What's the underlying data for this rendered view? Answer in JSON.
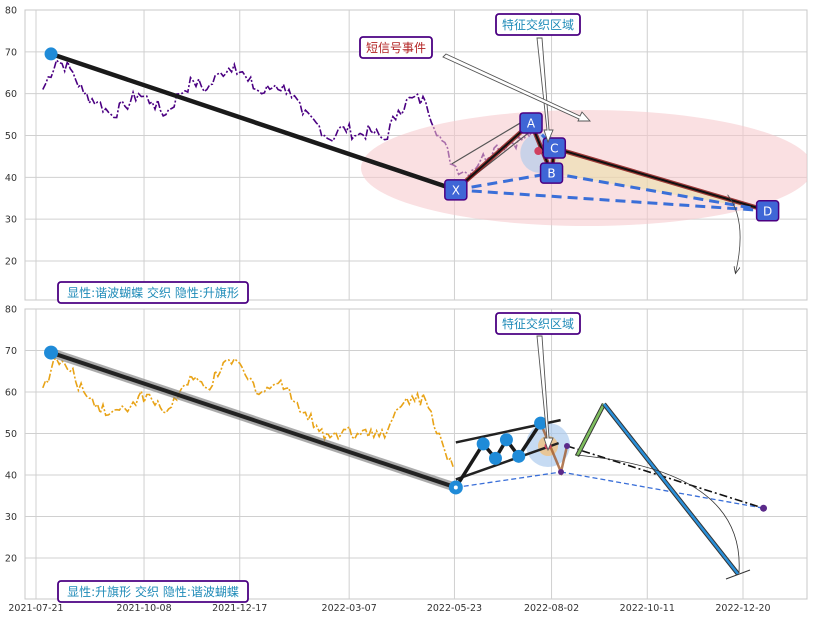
{
  "chart_data": [
    {
      "type": "line",
      "panel": "top",
      "ylim": [
        10,
        80
      ],
      "yticks": [
        "20",
        "30",
        "40",
        "50",
        "60",
        "70",
        "80"
      ],
      "grid": true,
      "colors": {
        "price": "#4b0082",
        "xa_leg": "#1a1a1a",
        "dashed": "#3a6fd8",
        "ellipse": "#f5c6cb",
        "label_fill": "#3f66d6",
        "callout_text": "#1f8bb8",
        "callout_text_alt": "#b22222",
        "callout_border": "#4b0082"
      },
      "series": [
        {
          "line_style": "dash-dot",
          "x": [
            "2021-07-26",
            "2021-08-05",
            "2021-08-15",
            "2021-08-25",
            "2021-09-04",
            "2021-09-14",
            "2021-09-24",
            "2021-10-04",
            "2021-10-14",
            "2021-10-24",
            "2021-11-03",
            "2021-11-13",
            "2021-11-23",
            "2021-12-03",
            "2021-12-13",
            "2021-12-23",
            "2022-01-02",
            "2022-01-12",
            "2022-01-22",
            "2022-02-01",
            "2022-02-11",
            "2022-02-21",
            "2022-03-03",
            "2022-03-13",
            "2022-03-23",
            "2022-04-02",
            "2022-04-12",
            "2022-04-22",
            "2022-05-02",
            "2022-05-12",
            "2022-05-22",
            "2022-06-01",
            "2022-06-11",
            "2022-06-21",
            "2022-07-01",
            "2022-07-11",
            "2022-07-21"
          ],
          "values": [
            61,
            68,
            66,
            60,
            58,
            55,
            57,
            60,
            58,
            55,
            60,
            63,
            61,
            65,
            67,
            63,
            60,
            62,
            61,
            55,
            53,
            49,
            52,
            50,
            51,
            49,
            56,
            59,
            58,
            50,
            43,
            41,
            44,
            47,
            48,
            49,
            51
          ]
        }
      ],
      "pattern_points": [
        {
          "label": "X",
          "date": "2022-05-24",
          "value": 37
        },
        {
          "label": "A",
          "date": "2022-07-18",
          "value": 53
        },
        {
          "label": "B",
          "date": "2022-08-02",
          "value": 41
        },
        {
          "label": "C",
          "date": "2022-08-04",
          "value": 47
        },
        {
          "label": "D",
          "date": "2023-01-07",
          "value": 32
        }
      ],
      "start_marker": {
        "date": "2021-08-01",
        "value": 69.5
      },
      "callouts": {
        "feature_zone": "特征交织区域",
        "short_signal": "短信号事件",
        "legend": "显性:谐波蝴蝶 交织 隐性:升旗形"
      }
    },
    {
      "type": "line",
      "panel": "bottom",
      "ylim": [
        10,
        80
      ],
      "yticks": [
        "20",
        "30",
        "40",
        "50",
        "60",
        "70",
        "80"
      ],
      "xticks": [
        "2021-07-21",
        "2021-10-08",
        "2021-12-17",
        "2022-03-07",
        "2022-05-23",
        "2022-08-02",
        "2022-10-11",
        "2022-12-20"
      ],
      "grid": true,
      "colors": {
        "price": "#e8a317",
        "xa_leg": "#222222",
        "flag": "#1a1a1a",
        "blue_leg": "#2a8fd8",
        "green_leg": "#7fbf5f",
        "dashed": "#3a6fd8",
        "marker": "#1f8bd8",
        "callout_text": "#1f8bb8",
        "callout_border": "#4b0082"
      },
      "series": [
        {
          "line_style": "dash-dot",
          "x": [
            "2021-07-26",
            "2021-08-05",
            "2021-08-15",
            "2021-08-25",
            "2021-09-04",
            "2021-09-14",
            "2021-09-24",
            "2021-10-04",
            "2021-10-14",
            "2021-10-24",
            "2021-11-03",
            "2021-11-13",
            "2021-11-23",
            "2021-12-03",
            "2021-12-13",
            "2021-12-23",
            "2022-01-02",
            "2022-01-12",
            "2022-01-22",
            "2022-02-01",
            "2022-02-11",
            "2022-02-21",
            "2022-03-03",
            "2022-03-13",
            "2022-03-23",
            "2022-04-02",
            "2022-04-12",
            "2022-04-22",
            "2022-05-02",
            "2022-05-12",
            "2022-05-22"
          ],
          "values": [
            61,
            68,
            65,
            60,
            57,
            55,
            56,
            59,
            58,
            55,
            60,
            63,
            61,
            65,
            68,
            63,
            60,
            62,
            61,
            55,
            52,
            49,
            51,
            50,
            51,
            49,
            56,
            59,
            58,
            50,
            42
          ]
        }
      ],
      "flag_points": [
        {
          "date": "2022-05-24",
          "value": 37
        },
        {
          "date": "2022-06-13",
          "value": 47.5
        },
        {
          "date": "2022-06-22",
          "value": 44
        },
        {
          "date": "2022-06-30",
          "value": 48.5
        },
        {
          "date": "2022-07-09",
          "value": 44.5
        },
        {
          "date": "2022-07-25",
          "value": 52.5
        }
      ],
      "start_marker": {
        "date": "2021-08-01",
        "value": 69.5
      },
      "end_marker": {
        "date": "2023-01-04",
        "value": 32
      },
      "callouts": {
        "feature_zone": "特征交织区域",
        "legend": "显性:升旗形 交织 隐性:谐波蝴蝶"
      }
    }
  ]
}
